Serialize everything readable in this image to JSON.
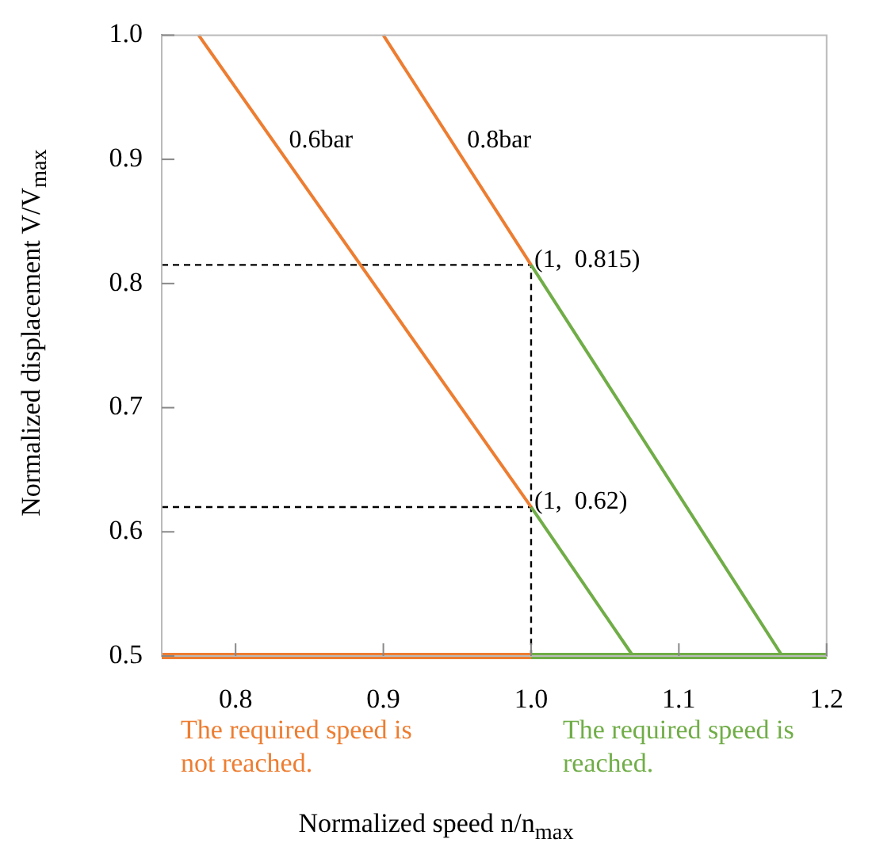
{
  "chart_data": {
    "type": "line",
    "xlabel": "Normalized speed n/n$_{max}$",
    "ylabel": "Normalized displacement V/V$_{max}$",
    "xlim": [
      0.75,
      1.2
    ],
    "ylim": [
      0.5,
      1.0
    ],
    "xticks": [
      {
        "value": 0.8,
        "label": "0.8"
      },
      {
        "value": 0.9,
        "label": "0.9"
      },
      {
        "value": 1.0,
        "label": "1.0"
      },
      {
        "value": 1.1,
        "label": "1.1"
      },
      {
        "value": 1.2,
        "label": "1.2"
      }
    ],
    "yticks": [
      {
        "value": 0.5,
        "label": "0.5"
      },
      {
        "value": 0.6,
        "label": "0.6"
      },
      {
        "value": 0.7,
        "label": "0.7"
      },
      {
        "value": 0.8,
        "label": "0.8"
      },
      {
        "value": 0.9,
        "label": "0.9"
      },
      {
        "value": 1.0,
        "label": "1.0"
      }
    ],
    "grid": false,
    "legend": false,
    "marker": "none",
    "series": [
      {
        "name": "0.6bar",
        "color": "#ed7d31",
        "x": [
          0.775,
          1.0
        ],
        "values": [
          1.0,
          0.62
        ]
      },
      {
        "color": "#70ad47",
        "x": [
          1.0,
          1.069
        ],
        "values": [
          0.62,
          0.5
        ]
      },
      {
        "name": "0.8bar",
        "color": "#ed7d31",
        "x": [
          0.9,
          1.0
        ],
        "values": [
          1.0,
          0.815
        ]
      },
      {
        "color": "#70ad47",
        "x": [
          1.0,
          1.17
        ],
        "values": [
          0.815,
          0.5
        ]
      },
      {
        "color": "#ed7d31",
        "x": [
          0.75,
          1.0
        ],
        "values": [
          0.5,
          0.5
        ]
      },
      {
        "color": "#70ad47",
        "x": [
          1.0,
          1.2
        ],
        "values": [
          0.5,
          0.5
        ]
      },
      {
        "color": "#000000",
        "line_style": "dashed",
        "x": [
          0.75,
          1.0,
          1.0
        ],
        "values": [
          0.815,
          0.815,
          0.5
        ]
      },
      {
        "color": "#000000",
        "line_style": "dashed",
        "x": [
          0.75,
          1.0
        ],
        "values": [
          0.62,
          0.62
        ]
      }
    ],
    "annotations": [
      {
        "text": "(1,  0.815)",
        "x": 1.0,
        "y": 0.815
      },
      {
        "text": "(1,  0.62)",
        "x": 1.0,
        "y": 0.62
      },
      "The required speed is not reached.",
      "The required speed is reached."
    ]
  }
}
